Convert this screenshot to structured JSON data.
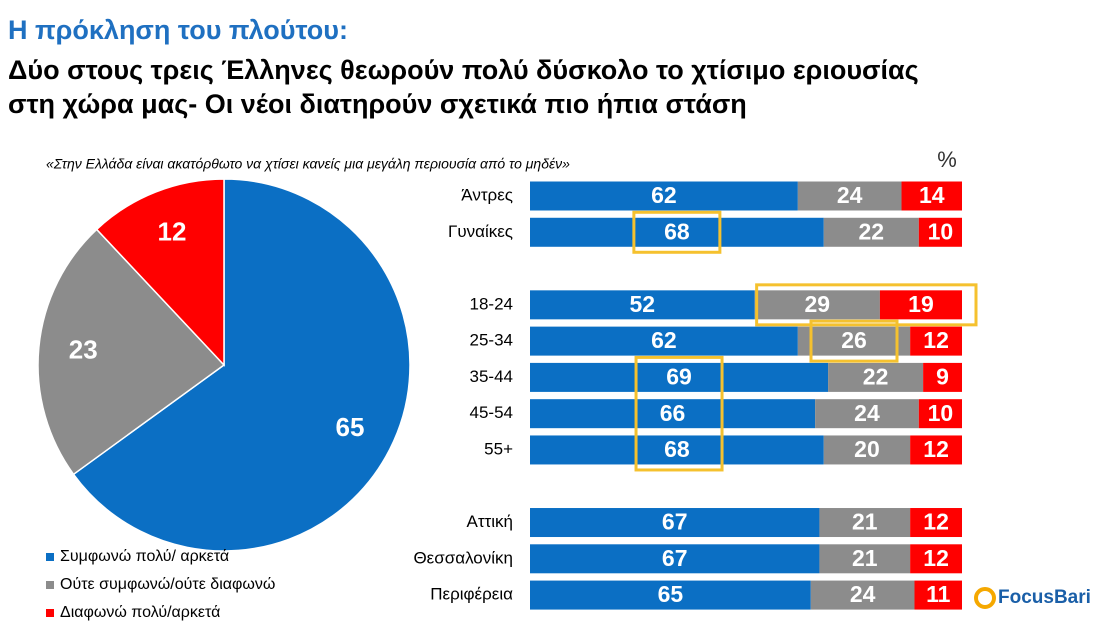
{
  "header": {
    "title": "Η πρόκληση του πλούτου:",
    "subtitle_lines": [
      "Δύο στους τρεις Έλληνες θεωρούν πολύ δύσκολο το χτίσιμο εριουσίας",
      "στη χώρα μας- Οι νέοι διατηρούν σχετικά πιο ήπια στάση"
    ],
    "question": "«Στην Ελλάδα είναι ακατόρθωτο να χτίσει κανείς μια μεγάλη περιουσία από το μηδέν»",
    "unit": "%",
    "logo": "FocusBari"
  },
  "chart_data": [
    {
      "type": "pie",
      "categories": [
        "Συμφωνώ πολύ/ αρκετά",
        "Ούτε συμφωνώ/ούτε διαφωνώ",
        "Διαφωνώ πολύ/αρκετά"
      ],
      "values": [
        65,
        23,
        12
      ],
      "colors": [
        "#0b6fc4",
        "#8c8c8c",
        "#ff0000"
      ]
    },
    {
      "type": "stacked_bar",
      "categories": [
        "Άντρες",
        "Γυναίκες",
        null,
        "18-24",
        "25-34",
        "35-44",
        "45-54",
        "55+",
        null,
        "Αττική",
        "Θεσσαλονίκη",
        "Περιφέρεια"
      ],
      "series": [
        {
          "color": "#0b6fc4",
          "values": [
            62,
            68,
            null,
            52,
            62,
            69,
            66,
            68,
            null,
            67,
            67,
            65
          ]
        },
        {
          "color": "#8c8c8c",
          "values": [
            24,
            22,
            null,
            29,
            26,
            22,
            24,
            20,
            null,
            21,
            21,
            24
          ]
        },
        {
          "color": "#ff0000",
          "values": [
            14,
            10,
            null,
            19,
            12,
            9,
            10,
            12,
            null,
            12,
            12,
            11
          ]
        }
      ],
      "xlim": [
        0,
        100
      ],
      "highlights": [
        {
          "series": [
            0
          ],
          "rows": [
            1
          ]
        },
        {
          "series": [
            1,
            2
          ],
          "rows": [
            3
          ]
        },
        {
          "series": [
            1
          ],
          "rows": [
            4
          ]
        },
        {
          "series": [
            0
          ],
          "rows": [
            5,
            6,
            7
          ]
        }
      ],
      "highlight_color": "#f5c12e"
    }
  ]
}
